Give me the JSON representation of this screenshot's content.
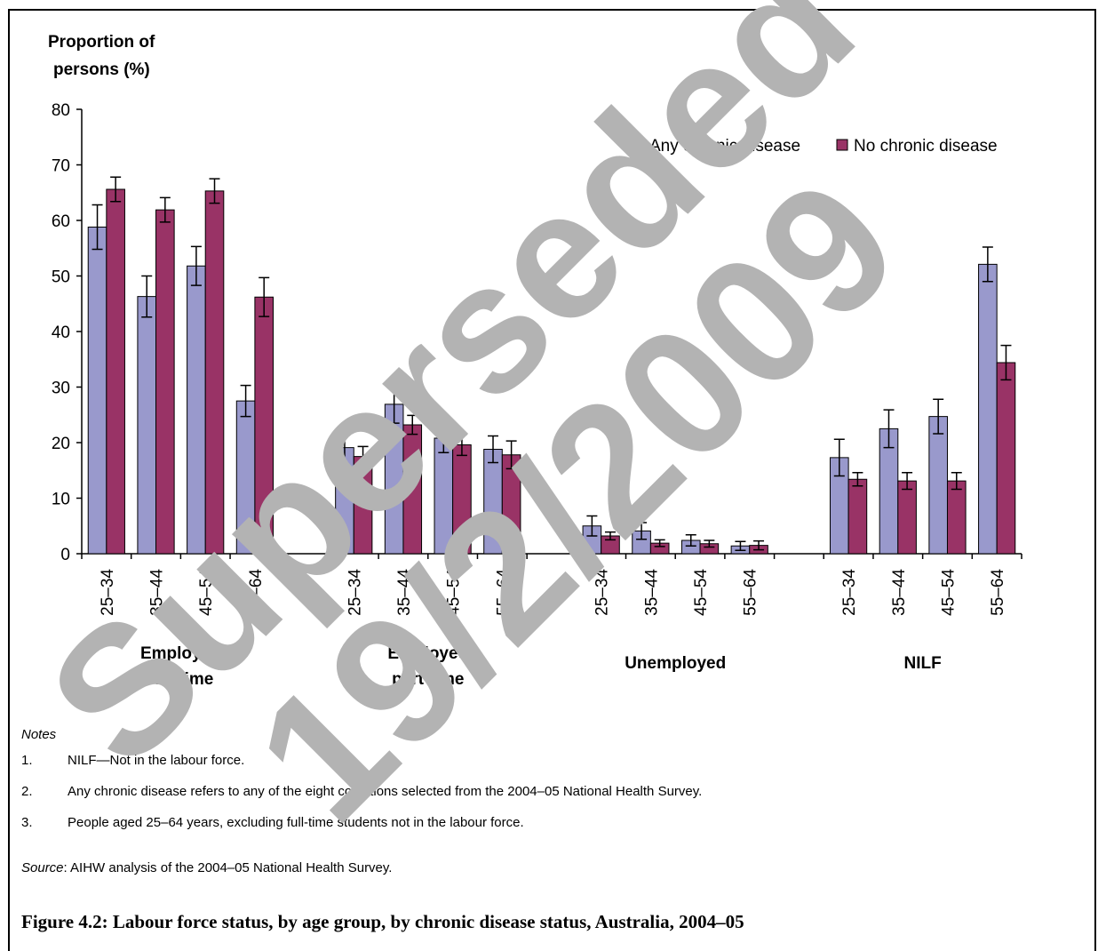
{
  "chart_data": {
    "type": "bar",
    "ylabel_lines": [
      "Proportion of",
      "persons (%)"
    ],
    "ylim": [
      0,
      80
    ],
    "yticks": [
      0,
      10,
      20,
      30,
      40,
      50,
      60,
      70,
      80
    ],
    "legend_position": "top-right",
    "group_labels": [
      [
        "Employed",
        "full-time"
      ],
      [
        "Employed",
        "part-time"
      ],
      [
        "Unemployed"
      ],
      [
        "NILF"
      ]
    ],
    "categories": [
      "25–34",
      "35–44",
      "45–54",
      "55–64"
    ],
    "series": [
      {
        "name": "Any chronic disease",
        "color": "#9999cc",
        "values": [
          [
            58.8,
            46.3,
            51.8,
            27.5
          ],
          [
            19.1,
            26.9,
            20.8,
            18.8
          ],
          [
            5.0,
            4.1,
            2.4,
            1.4
          ],
          [
            17.3,
            22.5,
            24.7,
            52.1
          ]
        ],
        "err": [
          [
            4.0,
            3.7,
            3.5,
            2.8
          ],
          [
            3.3,
            3.4,
            2.6,
            2.4
          ],
          [
            1.8,
            1.5,
            1.0,
            0.8
          ],
          [
            3.3,
            3.4,
            3.1,
            3.1
          ]
        ]
      },
      {
        "name": "No chronic disease",
        "color": "#993366",
        "values": [
          [
            65.6,
            61.9,
            65.3,
            46.2
          ],
          [
            17.5,
            23.2,
            19.6,
            17.8
          ],
          [
            3.2,
            1.9,
            1.8,
            1.5
          ],
          [
            13.4,
            13.1,
            13.1,
            34.4
          ]
        ],
        "err": [
          [
            2.2,
            2.2,
            2.2,
            3.5
          ],
          [
            1.8,
            1.7,
            1.9,
            2.5
          ],
          [
            0.7,
            0.6,
            0.6,
            0.8
          ],
          [
            1.2,
            1.5,
            1.5,
            3.1
          ]
        ]
      }
    ]
  },
  "notes": {
    "heading": "Notes",
    "items": [
      {
        "num": "1.",
        "text": "NILF—Not in the labour force."
      },
      {
        "num": "2.",
        "text": "Any chronic disease refers to any of the eight conditions selected from the 2004–05 National Health Survey."
      },
      {
        "num": "3.",
        "text": "People aged 25–64 years, excluding full-time students not in the labour force."
      }
    ]
  },
  "source": {
    "label": "Source",
    "text": ": AIHW analysis of the 2004–05 National Health Survey."
  },
  "caption": "Figure 4.2: Labour force status, by age group, by chronic disease status, Australia, 2004–05",
  "watermark": {
    "line1": "Superseded",
    "line2": "19/2/2009",
    "color": "#b3b3b3"
  }
}
